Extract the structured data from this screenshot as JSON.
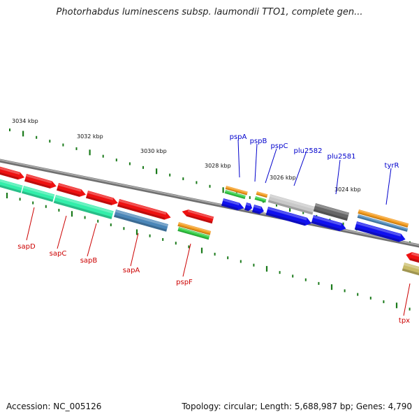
{
  "title": "Photorhabdus luminescens subsp. laumondii TTO1, complete gen...",
  "footer": {
    "accession": "Accession: NC_005126",
    "summary": "Topology: circular; Length: 5,688,987 bp; Genes: 4,790"
  },
  "colors": {
    "backbone": "#8a8a8a",
    "tick": "#1a7a1a",
    "label_top": "#0000cc",
    "label_bottom": "#cc0000",
    "red": "#ee1111",
    "blue": "#1111ee",
    "orange": "#f39a1c",
    "green": "#33cc44",
    "aqua": "#33eeaa",
    "steel": "#4a86b8",
    "lightgray": "#c8c8c8",
    "darkgray": "#666666",
    "khaki": "#c8bb66"
  },
  "scale_labels": [
    "3034 kbp",
    "3032 kbp",
    "3030 kbp",
    "3028 kbp",
    "3026 kbp",
    "3024 kbp"
  ],
  "gene_labels_top": [
    "pspA",
    "pspB",
    "pspC",
    "plu2582",
    "plu2581",
    "tyrR"
  ],
  "gene_labels_bottom": [
    "sapD",
    "sapC",
    "sapB",
    "sapA",
    "pspF",
    "tpx"
  ]
}
